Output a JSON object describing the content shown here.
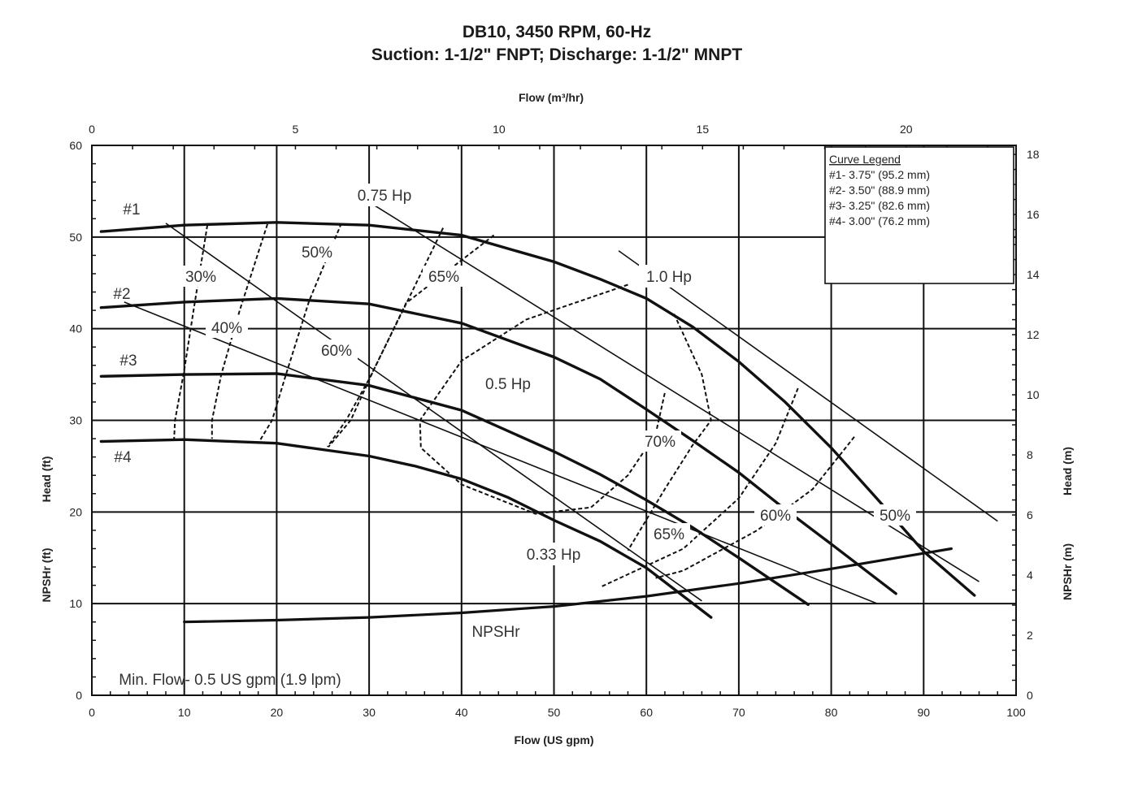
{
  "title": {
    "line1": "DB10, 3450 RPM, 60-Hz",
    "line2": "Suction: 1-1/2\" FNPT; Discharge: 1-1/2\" MNPT"
  },
  "colors": {
    "ink": "#111111",
    "background": "#ffffff"
  },
  "chart_data": {
    "type": "line",
    "grid": true,
    "axes": {
      "x_bottom": {
        "label": "Flow (US gpm)",
        "range": [
          0,
          100
        ],
        "ticks": [
          0,
          10,
          20,
          30,
          40,
          50,
          60,
          70,
          80,
          90,
          100
        ]
      },
      "x_top": {
        "label": "Flow (m³/hr)",
        "range": [
          0,
          22.7
        ],
        "ticks": [
          0,
          5,
          10,
          15,
          20
        ]
      },
      "y_left_head": {
        "label": "Head (ft)",
        "range": [
          0,
          60
        ],
        "ticks": [
          0,
          10,
          20,
          30,
          40,
          50,
          60
        ]
      },
      "y_left_npsh": {
        "label": "NPSHr (ft)"
      },
      "y_right_head": {
        "label": "Head (m)",
        "range": [
          0,
          18.3
        ],
        "ticks": [
          0,
          2,
          4,
          6,
          8,
          10,
          12,
          14,
          16,
          18
        ]
      },
      "y_right_npsh": {
        "label": "NPSHr (m)"
      }
    },
    "legend": {
      "placement": "top-right",
      "title": "Curve Legend",
      "entries": [
        "#1- 3.75\" (95.2 mm)",
        "#2- 3.50\" (88.9 mm)",
        "#3- 3.25\" (82.6 mm)",
        "#4- 3.00\" (76.2 mm)"
      ]
    },
    "series": [
      {
        "name": "#1",
        "x": [
          1,
          10,
          20,
          30,
          40,
          50,
          55,
          60,
          65,
          70,
          75,
          80,
          85,
          90,
          95.5
        ],
        "y": [
          50.6,
          51.3,
          51.6,
          51.3,
          50.2,
          47.3,
          45.4,
          43.3,
          40.2,
          36.4,
          32.0,
          27.0,
          21.4,
          15.7,
          10.9
        ]
      },
      {
        "name": "#2",
        "x": [
          1,
          10,
          20,
          30,
          40,
          50,
          55,
          60,
          65,
          70,
          75,
          80,
          87
        ],
        "y": [
          42.3,
          42.9,
          43.3,
          42.7,
          40.6,
          36.9,
          34.5,
          31.2,
          27.8,
          24.3,
          20.3,
          16.5,
          11.1
        ]
      },
      {
        "name": "#3",
        "x": [
          1,
          10,
          20,
          30,
          40,
          50,
          55,
          60,
          65,
          70,
          77.5
        ],
        "y": [
          34.8,
          35.0,
          35.1,
          33.8,
          31.1,
          26.6,
          24.1,
          21.3,
          18.3,
          15.0,
          9.9
        ]
      },
      {
        "name": "#4",
        "x": [
          1,
          10,
          20,
          30,
          35,
          40,
          45,
          50,
          55,
          60,
          67
        ],
        "y": [
          27.7,
          27.9,
          27.5,
          26.1,
          25.0,
          23.6,
          21.6,
          19.1,
          16.8,
          13.9,
          8.5
        ]
      },
      {
        "name": "NPSHr",
        "x": [
          10,
          20,
          30,
          40,
          50,
          60,
          70,
          80,
          93
        ],
        "y": [
          8.0,
          8.2,
          8.5,
          9.0,
          9.7,
          10.8,
          12.2,
          13.8,
          16.0
        ]
      }
    ],
    "hp_lines": [
      {
        "label": "0.33 Hp",
        "x": [
          8,
          66
        ],
        "y": [
          51.5,
          10.3
        ]
      },
      {
        "label": "0.5 Hp",
        "x": [
          3.5,
          85
        ],
        "y": [
          42.9,
          10.0
        ]
      },
      {
        "label": "0.75 Hp",
        "x": [
          30.5,
          96
        ],
        "y": [
          53.5,
          12.4
        ]
      },
      {
        "label": "1.0 Hp",
        "x": [
          57,
          98
        ],
        "y": [
          48.5,
          19.0
        ]
      }
    ],
    "efficiency_lines": [
      {
        "label": "30%",
        "x": [
          12.5,
          11,
          10,
          9,
          8.9
        ],
        "y": [
          51.3,
          42,
          35.5,
          30,
          28.0
        ]
      },
      {
        "label": "40%",
        "x": [
          19,
          16,
          14,
          13,
          13
        ],
        "y": [
          51.4,
          42,
          35,
          30,
          28.0
        ]
      },
      {
        "label": "50%",
        "x": [
          27,
          23.5,
          21,
          19.5,
          18
        ],
        "y": [
          51.5,
          43,
          35,
          30,
          27.5
        ]
      },
      {
        "label": "60%",
        "x": [
          38,
          34,
          30,
          27.5,
          25.5
        ],
        "y": [
          51.0,
          42.7,
          34.5,
          30,
          27.1
        ]
      },
      {
        "label": "65%",
        "x": [
          43.5,
          34,
          30.5,
          28,
          25.6
        ],
        "y": [
          50.2,
          42.8,
          35.5,
          30,
          27.1
        ]
      },
      {
        "label": "70%",
        "x": [
          58,
          47,
          40,
          35.5,
          35.6,
          40,
          48,
          54,
          58,
          61,
          62
        ],
        "y": [
          44.8,
          41,
          36.5,
          30,
          27,
          23,
          19.8,
          20.5,
          24,
          28.5,
          33
        ]
      },
      {
        "label": "65%",
        "x": [
          63,
          66,
          67,
          65,
          62,
          58
        ],
        "y": [
          41.6,
          35,
          30,
          27.3,
          22.5,
          15.8
        ]
      },
      {
        "label": "60%",
        "x": [
          76.4,
          74,
          70,
          64,
          55
        ],
        "y": [
          33.5,
          27.5,
          21.5,
          16,
          11.8
        ]
      },
      {
        "label": "50%",
        "x": [
          82.5,
          78,
          72,
          64,
          61
        ],
        "y": [
          28.2,
          22.5,
          18,
          13.6,
          12.8
        ]
      }
    ],
    "annotations": [
      {
        "text": "#1"
      },
      {
        "text": "#2"
      },
      {
        "text": "#3"
      },
      {
        "text": "#4"
      },
      {
        "text": "0.75 Hp"
      },
      {
        "text": "1.0 Hp"
      },
      {
        "text": "0.5 Hp"
      },
      {
        "text": "0.33 Hp"
      },
      {
        "text": "30%"
      },
      {
        "text": "40%"
      },
      {
        "text": "50%"
      },
      {
        "text": "60%"
      },
      {
        "text": "65%"
      },
      {
        "text": "70%"
      },
      {
        "text": "65%"
      },
      {
        "text": "60%"
      },
      {
        "text": "50%"
      },
      {
        "text": "NPSHr"
      },
      {
        "text": "Min. Flow- 0.5 US gpm (1.9 lpm)"
      }
    ]
  }
}
